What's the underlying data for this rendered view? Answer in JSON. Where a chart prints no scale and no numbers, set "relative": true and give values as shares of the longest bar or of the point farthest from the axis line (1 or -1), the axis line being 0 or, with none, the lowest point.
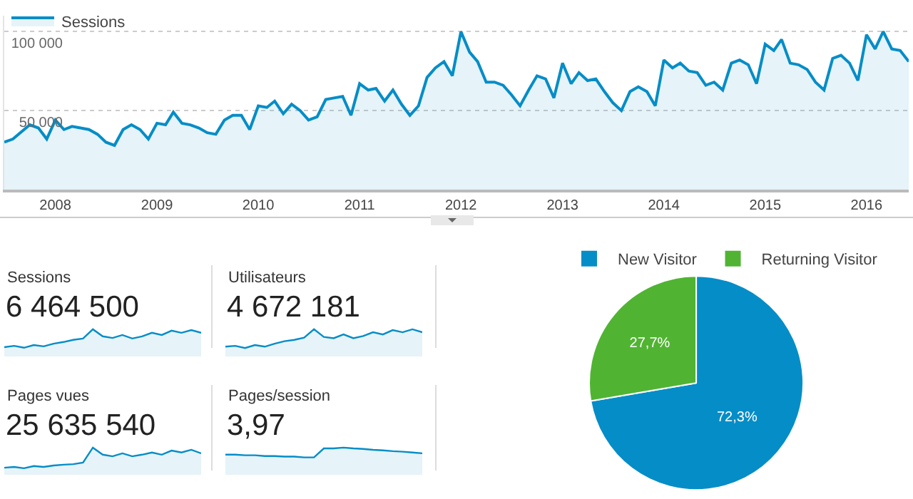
{
  "chart_data": [
    {
      "type": "area",
      "legend": "top left",
      "grid": "y",
      "marker": "none",
      "xlim": [
        "2007-07",
        "2016-06"
      ],
      "ylim": [
        0,
        110000
      ],
      "yticks": [
        {
          "value": 50000,
          "label": "50 000"
        },
        {
          "value": 100000,
          "label": "100 000"
        }
      ],
      "xticks": [
        "2008",
        "2009",
        "2010",
        "2011",
        "2012",
        "2013",
        "2014",
        "2015",
        "2016"
      ],
      "x": [
        "2007-07",
        "2007-08",
        "2007-10",
        "2007-11",
        "2007-12",
        "2008-01",
        "2008-02",
        "2008-03",
        "2008-04",
        "2008-05",
        "2008-06",
        "2008-07",
        "2008-08",
        "2008-09",
        "2008-10",
        "2008-11",
        "2008-12",
        "2009-01",
        "2009-02",
        "2009-03",
        "2009-04",
        "2009-05",
        "2009-06",
        "2009-07",
        "2009-08",
        "2009-09",
        "2009-10",
        "2009-11",
        "2009-12",
        "2010-01",
        "2010-02",
        "2010-03",
        "2010-04",
        "2010-05",
        "2010-06",
        "2010-07",
        "2010-08",
        "2010-09",
        "2010-10",
        "2010-11",
        "2010-12",
        "2011-01",
        "2011-02",
        "2011-03",
        "2011-04",
        "2011-05",
        "2011-06",
        "2011-07",
        "2011-08",
        "2011-09",
        "2011-10",
        "2011-11",
        "2011-12",
        "2012-01",
        "2012-02",
        "2012-03",
        "2012-04",
        "2012-05",
        "2012-06",
        "2012-07",
        "2012-08",
        "2012-09",
        "2012-10",
        "2012-11",
        "2012-12",
        "2013-01",
        "2013-02",
        "2013-03",
        "2013-04",
        "2013-05",
        "2013-06",
        "2013-07",
        "2013-08",
        "2013-09",
        "2013-10",
        "2013-11",
        "2013-12",
        "2014-01",
        "2014-02",
        "2014-03",
        "2014-04",
        "2014-05",
        "2014-06",
        "2014-07",
        "2014-08",
        "2014-09",
        "2014-10",
        "2014-11",
        "2014-12",
        "2015-01",
        "2015-02",
        "2015-03",
        "2015-04",
        "2015-05",
        "2015-06",
        "2015-07",
        "2015-08",
        "2015-09",
        "2015-10",
        "2015-11",
        "2015-12",
        "2016-01",
        "2016-02",
        "2016-03",
        "2016-04",
        "2016-05",
        "2016-06"
      ],
      "series": [
        {
          "name": "Sessions",
          "color": "#058dc7",
          "values": [
            30000,
            32000,
            41000,
            39000,
            32000,
            44000,
            38000,
            40000,
            39000,
            38000,
            35000,
            30000,
            28000,
            38000,
            41000,
            38000,
            32000,
            42000,
            41000,
            49000,
            42000,
            41000,
            39000,
            36000,
            35000,
            44000,
            47000,
            47000,
            38000,
            53000,
            52000,
            56000,
            48000,
            54000,
            50000,
            44000,
            46000,
            57000,
            58000,
            59000,
            47000,
            67000,
            63000,
            64000,
            56000,
            63000,
            54000,
            47000,
            53000,
            71000,
            77000,
            81000,
            72000,
            100000,
            87000,
            81000,
            68000,
            68000,
            66000,
            60000,
            53000,
            63000,
            72000,
            70000,
            58000,
            80000,
            67000,
            74000,
            69000,
            70000,
            62000,
            55000,
            50000,
            62000,
            65000,
            62000,
            53000,
            82000,
            77000,
            80000,
            75000,
            74000,
            66000,
            68000,
            63000,
            80000,
            82000,
            79000,
            67000,
            92000,
            88000,
            95000,
            80000,
            79000,
            76000,
            68000,
            63000,
            83000,
            85000,
            80000,
            69000,
            98000,
            89000,
            100000,
            89000,
            88000,
            81000
          ]
        }
      ]
    },
    {
      "type": "area",
      "relative": true,
      "title": "Sessions",
      "subtitle": "6 464 500",
      "categories": [
        null,
        null,
        null,
        null,
        null,
        null,
        null,
        null,
        null,
        null,
        null,
        null,
        null,
        null,
        null,
        null,
        null,
        null,
        null,
        null,
        null
      ],
      "series": [
        {
          "color": "#058dc7",
          "values": [
            0.34,
            0.39,
            0.32,
            0.42,
            0.37,
            0.47,
            0.53,
            0.61,
            0.66,
            1,
            0.74,
            0.68,
            0.79,
            0.66,
            0.74,
            0.87,
            0.79,
            0.95,
            0.87,
            0.97,
            0.87
          ]
        }
      ]
    },
    {
      "type": "area",
      "relative": true,
      "title": "Utilisateurs",
      "subtitle": "4 672 181",
      "categories": [
        null,
        null,
        null,
        null,
        null,
        null,
        null,
        null,
        null,
        null,
        null,
        null,
        null,
        null,
        null,
        null,
        null,
        null,
        null,
        null,
        null
      ],
      "series": [
        {
          "color": "#058dc7",
          "values": [
            0.36,
            0.39,
            0.31,
            0.42,
            0.36,
            0.47,
            0.56,
            0.61,
            0.69,
            1,
            0.72,
            0.67,
            0.81,
            0.67,
            0.75,
            0.89,
            0.81,
            0.97,
            0.89,
            1,
            0.89
          ]
        }
      ]
    },
    {
      "type": "area",
      "relative": true,
      "title": "Pages vues",
      "subtitle": "25 635 540",
      "categories": [
        null,
        null,
        null,
        null,
        null,
        null,
        null,
        null,
        null,
        null,
        null,
        null,
        null,
        null,
        null,
        null,
        null,
        null,
        null,
        null,
        null
      ],
      "series": [
        {
          "color": "#058dc7",
          "values": [
            0.26,
            0.29,
            0.24,
            0.32,
            0.29,
            0.34,
            0.37,
            0.39,
            0.45,
            1,
            0.74,
            0.68,
            0.79,
            0.68,
            0.74,
            0.82,
            0.74,
            0.89,
            0.82,
            0.92,
            0.79
          ]
        }
      ]
    },
    {
      "type": "area",
      "relative": true,
      "title": "Pages/session",
      "subtitle": "3,97",
      "categories": [
        null,
        null,
        null,
        null,
        null,
        null,
        null,
        null,
        null,
        null,
        null,
        null,
        null,
        null,
        null,
        null,
        null,
        null,
        null,
        null,
        null
      ],
      "series": [
        {
          "color": "#058dc7",
          "values": [
            0.74,
            0.74,
            0.72,
            0.72,
            0.69,
            0.69,
            0.67,
            0.67,
            0.64,
            0.64,
            0.97,
            0.97,
            1,
            0.97,
            0.95,
            0.92,
            0.9,
            0.87,
            0.85,
            0.82,
            0.79
          ]
        }
      ]
    },
    {
      "type": "pie",
      "legend": "top",
      "categories": [
        "New Visitor",
        "Returning Visitor"
      ],
      "values": [
        72.3,
        27.7
      ],
      "colors": [
        "#058dc7",
        "#50b432"
      ],
      "value_labels": [
        "72,3%",
        "27,7%"
      ]
    }
  ]
}
